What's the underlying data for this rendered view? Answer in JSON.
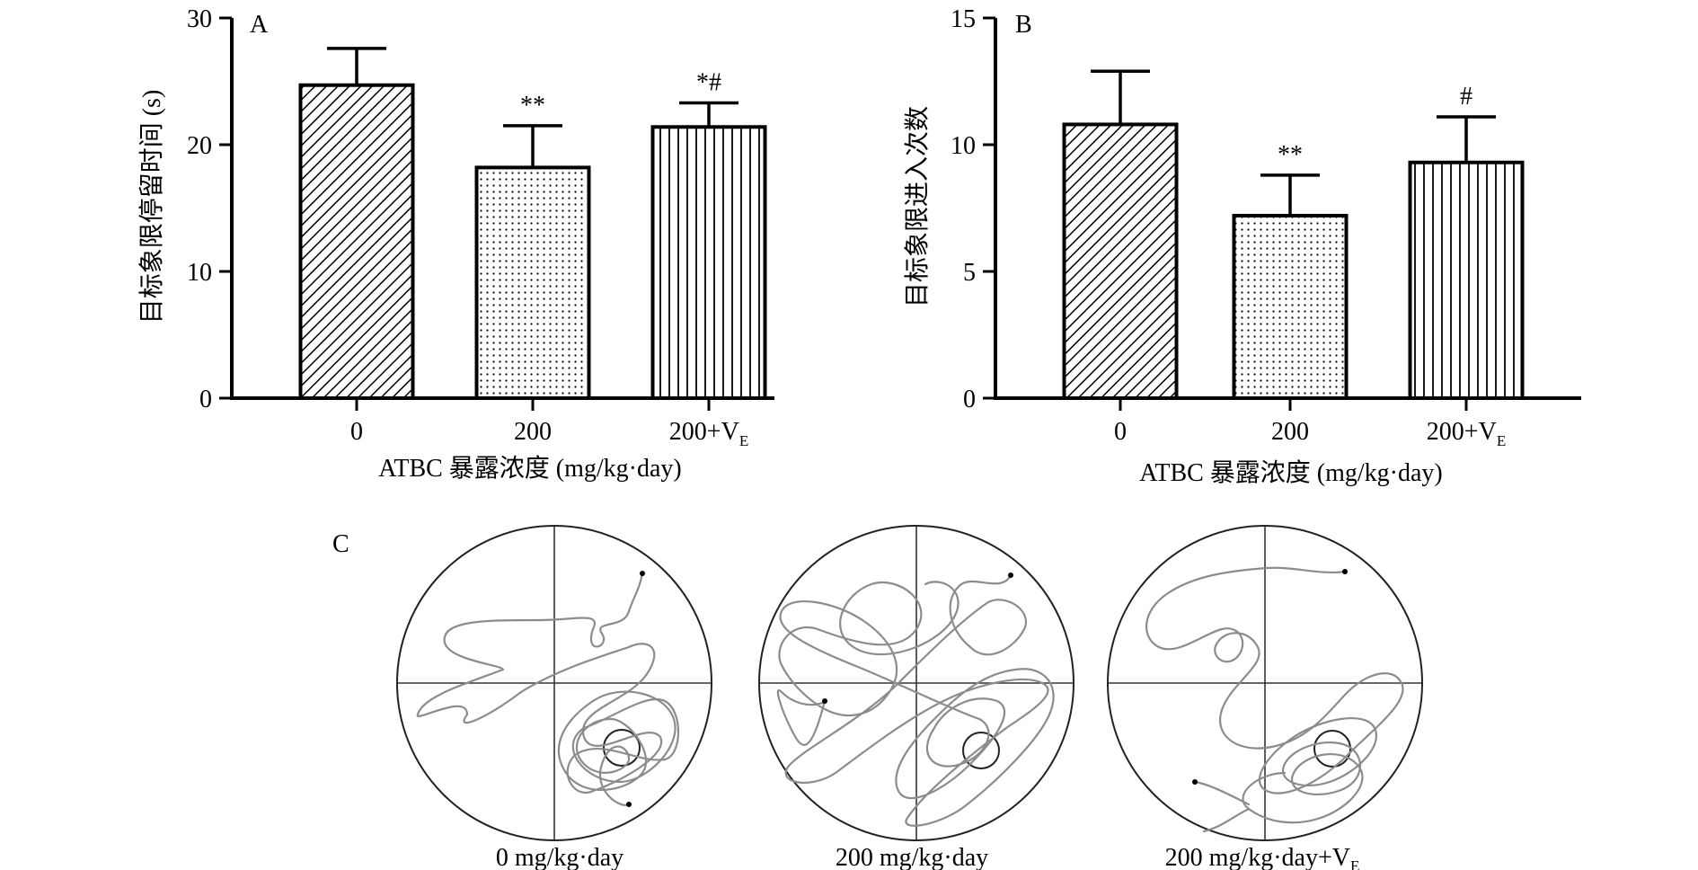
{
  "chart_data": [
    {
      "type": "bar",
      "panel": "A",
      "categories": [
        "0",
        "200",
        "200+V"
      ],
      "category_subscripts": [
        "",
        "",
        "E"
      ],
      "values": [
        24.7,
        18.2,
        21.4
      ],
      "errors": [
        2.9,
        3.3,
        1.9
      ],
      "significance": [
        "",
        "**",
        "*#"
      ],
      "patterns": [
        "diagonal",
        "dots",
        "vertical"
      ],
      "ylabel": "目标象限停留时间 (s)",
      "xlabel": "ATBC 暴露浓度 (mg/kg·day)",
      "ylim": [
        0,
        30
      ],
      "yticks": [
        0,
        10,
        20,
        30
      ]
    },
    {
      "type": "bar",
      "panel": "B",
      "categories": [
        "0",
        "200",
        "200+V"
      ],
      "category_subscripts": [
        "",
        "",
        "E"
      ],
      "values": [
        10.8,
        7.2,
        9.3
      ],
      "errors": [
        2.1,
        1.6,
        1.8
      ],
      "significance": [
        "",
        "**",
        "#"
      ],
      "patterns": [
        "diagonal",
        "dots",
        "vertical"
      ],
      "ylabel": "目标象限进入次数",
      "xlabel": "ATBC 暴露浓度 (mg/kg·day)",
      "ylim": [
        0,
        15
      ],
      "yticks": [
        0,
        5,
        10,
        15
      ]
    }
  ],
  "panel_c": {
    "label": "C",
    "captions": [
      {
        "text": "0 mg/kg·day",
        "sub": ""
      },
      {
        "text": "200 mg/kg·day",
        "sub": ""
      },
      {
        "text": "200 mg/kg·day+V",
        "sub": "E"
      }
    ]
  },
  "colors": {
    "ink": "#000000",
    "track": "#8c8c8c"
  }
}
